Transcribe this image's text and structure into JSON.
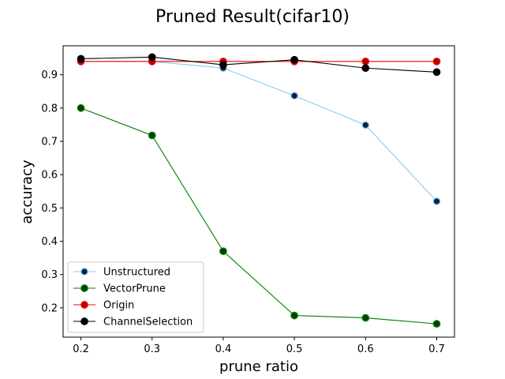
{
  "chart_data": {
    "type": "line",
    "title": "Pruned Result(cifar10)",
    "xlabel": "prune ratio",
    "ylabel": "accuracy",
    "x": [
      0.2,
      0.3,
      0.4,
      0.5,
      0.6,
      0.7
    ],
    "xticks": [
      "0.2",
      "0.3",
      "0.4",
      "0.5",
      "0.6",
      "0.7"
    ],
    "yticks": [
      "0.2",
      "0.3",
      "0.4",
      "0.5",
      "0.6",
      "0.7",
      "0.8",
      "0.9"
    ],
    "ytick_values": [
      0.2,
      0.3,
      0.4,
      0.5,
      0.6,
      0.7,
      0.8,
      0.9
    ],
    "xlim": [
      0.175,
      0.725
    ],
    "ylim": [
      0.112,
      0.987
    ],
    "grid": false,
    "legend_position": "lower-left",
    "series": [
      {
        "name": "Unstructured",
        "color": "#87ceeb",
        "marker_color": "#0b1f4a",
        "values": [
          0.94,
          0.94,
          0.92,
          0.837,
          0.749,
          0.52
        ]
      },
      {
        "name": "VectorPrune",
        "color": "#008000",
        "marker_color": "#0b3d0b",
        "values": [
          0.8,
          0.718,
          0.37,
          0.177,
          0.17,
          0.152
        ]
      },
      {
        "name": "Origin",
        "color": "#ff0000",
        "marker_color": "#b00000",
        "values": [
          0.94,
          0.94,
          0.94,
          0.94,
          0.94,
          0.94
        ]
      },
      {
        "name": "ChannelSelection",
        "color": "#000000",
        "marker_color": "#000000",
        "values": [
          0.948,
          0.953,
          0.93,
          0.945,
          0.92,
          0.908
        ]
      }
    ]
  }
}
